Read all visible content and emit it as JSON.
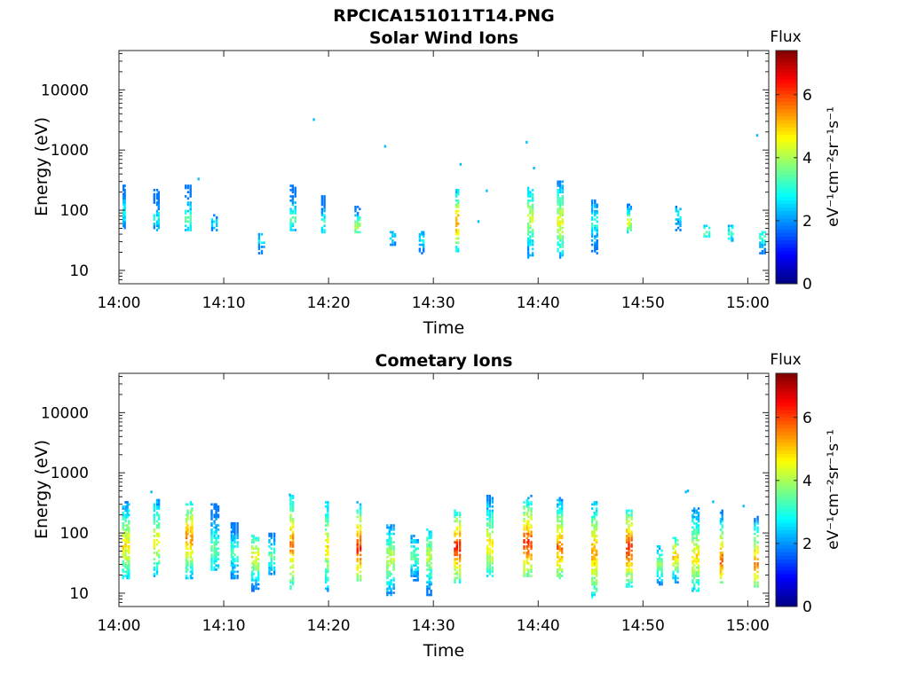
{
  "figure_title": "RPCICA151011T14.PNG",
  "chart_data": [
    {
      "type": "heatmap",
      "title": "Solar Wind Ions",
      "xlabel": "Time",
      "ylabel": "Energy (eV)",
      "x_ticks": [
        "14:00",
        "14:10",
        "14:20",
        "14:30",
        "14:40",
        "14:50",
        "15:00"
      ],
      "y_ticks": [
        "10",
        "100",
        "1000",
        "10000"
      ],
      "y_scale": "log",
      "xlim": [
        "14:00",
        "15:02"
      ],
      "ylim": [
        6,
        45000
      ],
      "colorbar": {
        "label": "Flux",
        "unit": "eV⁻¹cm⁻²sr⁻¹s⁻¹",
        "range": [
          0,
          7.4
        ],
        "ticks": [
          "0",
          "2",
          "4",
          "6"
        ],
        "colormap": "jet"
      },
      "bursts": [
        {
          "t": 0.5,
          "emin": 45,
          "emax": 250,
          "peak": 3.0,
          "peak_e": 90
        },
        {
          "t": 3.5,
          "emin": 45,
          "emax": 210,
          "peak": 2.8,
          "peak_e": 70
        },
        {
          "t": 6.5,
          "emin": 45,
          "emax": 250,
          "peak": 3.3,
          "peak_e": 70
        },
        {
          "t": 9.0,
          "emin": 45,
          "emax": 80,
          "peak": 2.5,
          "peak_e": 60
        },
        {
          "t": 13.5,
          "emin": 18,
          "emax": 40,
          "peak": 2.7,
          "peak_e": 30
        },
        {
          "t": 16.5,
          "emin": 45,
          "emax": 250,
          "peak": 3.3,
          "peak_e": 70
        },
        {
          "t": 19.5,
          "emin": 40,
          "emax": 170,
          "peak": 3.2,
          "peak_e": 60
        },
        {
          "t": 22.7,
          "emin": 40,
          "emax": 110,
          "peak": 4.2,
          "peak_e": 50
        },
        {
          "t": 26.0,
          "emin": 25,
          "emax": 45,
          "peak": 2.6,
          "peak_e": 35
        },
        {
          "t": 28.8,
          "emin": 18,
          "emax": 45,
          "peak": 2.7,
          "peak_e": 30
        },
        {
          "t": 32.3,
          "emin": 20,
          "emax": 210,
          "peak": 5.6,
          "peak_e": 60
        },
        {
          "t": 39.2,
          "emin": 15,
          "emax": 230,
          "peak": 4.3,
          "peak_e": 70
        },
        {
          "t": 42.0,
          "emin": 15,
          "emax": 290,
          "peak": 4.6,
          "peak_e": 60
        },
        {
          "t": 45.3,
          "emin": 18,
          "emax": 150,
          "peak": 3.1,
          "peak_e": 60
        },
        {
          "t": 48.6,
          "emin": 40,
          "emax": 120,
          "peak": 4.4,
          "peak_e": 60
        },
        {
          "t": 53.3,
          "emin": 45,
          "emax": 120,
          "peak": 2.9,
          "peak_e": 80
        },
        {
          "t": 56.0,
          "emin": 35,
          "emax": 55,
          "peak": 3.5,
          "peak_e": 40
        },
        {
          "t": 58.3,
          "emin": 28,
          "emax": 55,
          "peak": 3.2,
          "peak_e": 40
        },
        {
          "t": 61.3,
          "emin": 18,
          "emax": 45,
          "peak": 3.3,
          "peak_e": 35
        }
      ],
      "isolated_points": [
        {
          "t": 18.5,
          "e": 3200
        },
        {
          "t": 25.3,
          "e": 1150
        },
        {
          "t": 32.5,
          "e": 580
        },
        {
          "t": 38.8,
          "e": 1350
        },
        {
          "t": 39.5,
          "e": 500
        },
        {
          "t": 35.0,
          "e": 210
        },
        {
          "t": 60.8,
          "e": 1750
        },
        {
          "t": 7.5,
          "e": 330
        },
        {
          "t": 34.2,
          "e": 65
        }
      ]
    },
    {
      "type": "heatmap",
      "title": "Cometary Ions",
      "xlabel": "Time",
      "ylabel": "Energy (eV)",
      "x_ticks": [
        "14:00",
        "14:10",
        "14:20",
        "14:30",
        "14:40",
        "14:50",
        "15:00"
      ],
      "y_ticks": [
        "10",
        "100",
        "1000",
        "10000"
      ],
      "y_scale": "log",
      "xlim": [
        "14:00",
        "15:02"
      ],
      "ylim": [
        6,
        45000
      ],
      "colorbar": {
        "label": "Flux",
        "unit": "eV⁻¹cm⁻²sr⁻¹s⁻¹",
        "range": [
          0,
          7.4
        ],
        "ticks": [
          "0",
          "2",
          "4",
          "6"
        ],
        "colormap": "jet"
      },
      "bursts": [
        {
          "t": 0.5,
          "emin": 16,
          "emax": 330,
          "peak": 4.8,
          "peak_e": 60
        },
        {
          "t": 3.5,
          "emin": 18,
          "emax": 340,
          "peak": 4.7,
          "peak_e": 70
        },
        {
          "t": 6.5,
          "emin": 17,
          "emax": 330,
          "peak": 5.6,
          "peak_e": 80
        },
        {
          "t": 9.0,
          "emin": 22,
          "emax": 300,
          "peak": 3.6,
          "peak_e": 50
        },
        {
          "t": 10.8,
          "emin": 17,
          "emax": 140,
          "peak": 3.4,
          "peak_e": 45
        },
        {
          "t": 12.8,
          "emin": 10,
          "emax": 90,
          "peak": 4.7,
          "peak_e": 40
        },
        {
          "t": 14.5,
          "emin": 20,
          "emax": 100,
          "peak": 3.6,
          "peak_e": 40
        },
        {
          "t": 16.5,
          "emin": 11,
          "emax": 400,
          "peak": 5.8,
          "peak_e": 60
        },
        {
          "t": 19.8,
          "emin": 10,
          "emax": 320,
          "peak": 4.8,
          "peak_e": 60
        },
        {
          "t": 22.9,
          "emin": 15,
          "emax": 330,
          "peak": 6.3,
          "peak_e": 55
        },
        {
          "t": 25.7,
          "emin": 9,
          "emax": 130,
          "peak": 4.3,
          "peak_e": 35
        },
        {
          "t": 28.0,
          "emin": 15,
          "emax": 90,
          "peak": 3.6,
          "peak_e": 40
        },
        {
          "t": 29.5,
          "emin": 9,
          "emax": 110,
          "peak": 4.3,
          "peak_e": 40
        },
        {
          "t": 32.2,
          "emin": 14,
          "emax": 230,
          "peak": 6.4,
          "peak_e": 55
        },
        {
          "t": 35.3,
          "emin": 18,
          "emax": 400,
          "peak": 4.9,
          "peak_e": 60
        },
        {
          "t": 38.8,
          "emin": 18,
          "emax": 420,
          "peak": 6.2,
          "peak_e": 65
        },
        {
          "t": 42.0,
          "emin": 16,
          "emax": 380,
          "peak": 5.7,
          "peak_e": 55
        },
        {
          "t": 45.3,
          "emin": 8,
          "emax": 330,
          "peak": 5.4,
          "peak_e": 45
        },
        {
          "t": 48.6,
          "emin": 12,
          "emax": 230,
          "peak": 6.3,
          "peak_e": 55
        },
        {
          "t": 51.5,
          "emin": 12,
          "emax": 60,
          "peak": 3.9,
          "peak_e": 30
        },
        {
          "t": 53.0,
          "emin": 14,
          "emax": 80,
          "peak": 5.2,
          "peak_e": 40
        },
        {
          "t": 54.8,
          "emin": 10,
          "emax": 260,
          "peak": 4.8,
          "peak_e": 40
        },
        {
          "t": 57.5,
          "emin": 14,
          "emax": 230,
          "peak": 5.8,
          "peak_e": 35
        },
        {
          "t": 60.8,
          "emin": 12,
          "emax": 190,
          "peak": 5.7,
          "peak_e": 30
        }
      ],
      "isolated_points": [
        {
          "t": 54.2,
          "e": 500
        },
        {
          "t": 54.0,
          "e": 480
        },
        {
          "t": 56.6,
          "e": 330
        },
        {
          "t": 3.0,
          "e": 480
        },
        {
          "t": 16.2,
          "e": 430
        },
        {
          "t": 59.5,
          "e": 280
        }
      ]
    }
  ]
}
